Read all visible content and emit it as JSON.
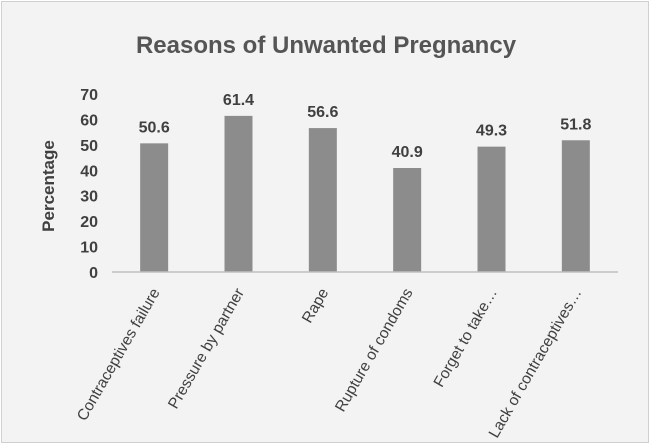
{
  "chart_data": {
    "type": "bar",
    "title": "Reasons of Unwanted Pregnancy",
    "xlabel": "",
    "ylabel": "Percentage",
    "categories": [
      "Contraceptives failure",
      "Pressure by partner",
      "Rape",
      "Rupture of condoms",
      "Forget to take…",
      "Lack of contraceptives…"
    ],
    "values": [
      50.6,
      61.4,
      56.6,
      40.9,
      49.3,
      51.8
    ],
    "data_labels": [
      "50.6",
      "61.4",
      "56.6",
      "40.9",
      "49.3",
      "51.8"
    ],
    "ylim": [
      0,
      70
    ],
    "yticks": [
      "0",
      "10",
      "20",
      "30",
      "40",
      "50",
      "60",
      "70"
    ],
    "grid": false,
    "legend": "none",
    "colors": {
      "bar": "#8c8c8c",
      "text": "#404040",
      "title": "#555555",
      "axis": "#bfbfbf",
      "background": "#f3f3f3"
    }
  }
}
